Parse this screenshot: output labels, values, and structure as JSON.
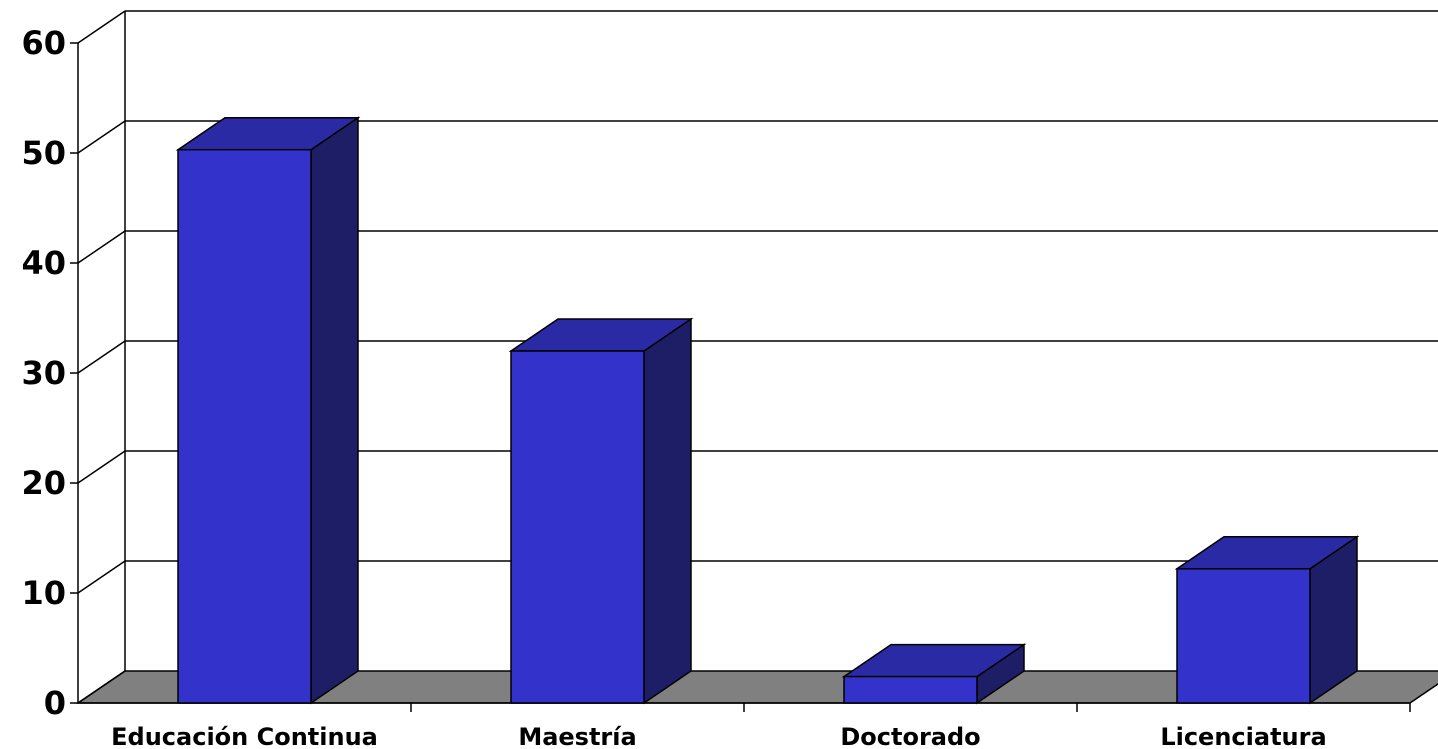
{
  "chart_data": {
    "type": "bar",
    "style": "3d-column",
    "categories": [
      "Educación Continua",
      "Maestría",
      "Doctorado",
      "Licenciatura"
    ],
    "series": [
      {
        "values": [
          50.3,
          32,
          2.4,
          12.2
        ]
      }
    ],
    "ylim": [
      0,
      60
    ],
    "yticks": [
      0,
      10,
      20,
      30,
      40,
      50,
      60
    ],
    "grid": true,
    "legend": "none",
    "colors": {
      "bar_front": "#3333CC",
      "bar_top": "#2A2AA5",
      "bar_side": "#1E1E66",
      "floor": "#808080",
      "gridline": "#000000"
    }
  }
}
